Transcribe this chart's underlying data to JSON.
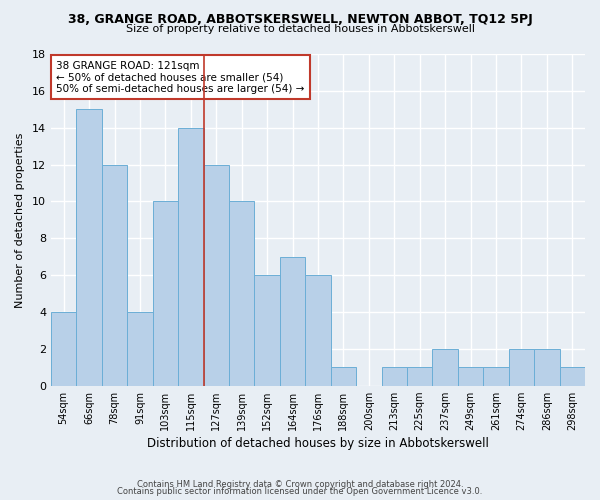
{
  "title": "38, GRANGE ROAD, ABBOTSKERSWELL, NEWTON ABBOT, TQ12 5PJ",
  "subtitle": "Size of property relative to detached houses in Abbotskerswell",
  "xlabel": "Distribution of detached houses by size in Abbotskerswell",
  "ylabel": "Number of detached properties",
  "bin_labels": [
    "54sqm",
    "66sqm",
    "78sqm",
    "91sqm",
    "103sqm",
    "115sqm",
    "127sqm",
    "139sqm",
    "152sqm",
    "164sqm",
    "176sqm",
    "188sqm",
    "200sqm",
    "213sqm",
    "225sqm",
    "237sqm",
    "249sqm",
    "261sqm",
    "274sqm",
    "286sqm",
    "298sqm"
  ],
  "bar_values": [
    4,
    15,
    12,
    4,
    10,
    14,
    12,
    10,
    6,
    7,
    6,
    1,
    0,
    1,
    1,
    2,
    1,
    1,
    2,
    2,
    1
  ],
  "bar_color": "#b8d0e8",
  "bar_edge_color": "#6baed6",
  "vline_x": 5.5,
  "vline_color": "#c0392b",
  "annotation_title": "38 GRANGE ROAD: 121sqm",
  "annotation_line1": "← 50% of detached houses are smaller (54)",
  "annotation_line2": "50% of semi-detached houses are larger (54) →",
  "annotation_box_color": "#c0392b",
  "ylim": [
    0,
    18
  ],
  "yticks": [
    0,
    2,
    4,
    6,
    8,
    10,
    12,
    14,
    16,
    18
  ],
  "footer1": "Contains HM Land Registry data © Crown copyright and database right 2024.",
  "footer2": "Contains public sector information licensed under the Open Government Licence v3.0.",
  "bg_color": "#e8eef4",
  "grid_color": "#ffffff"
}
